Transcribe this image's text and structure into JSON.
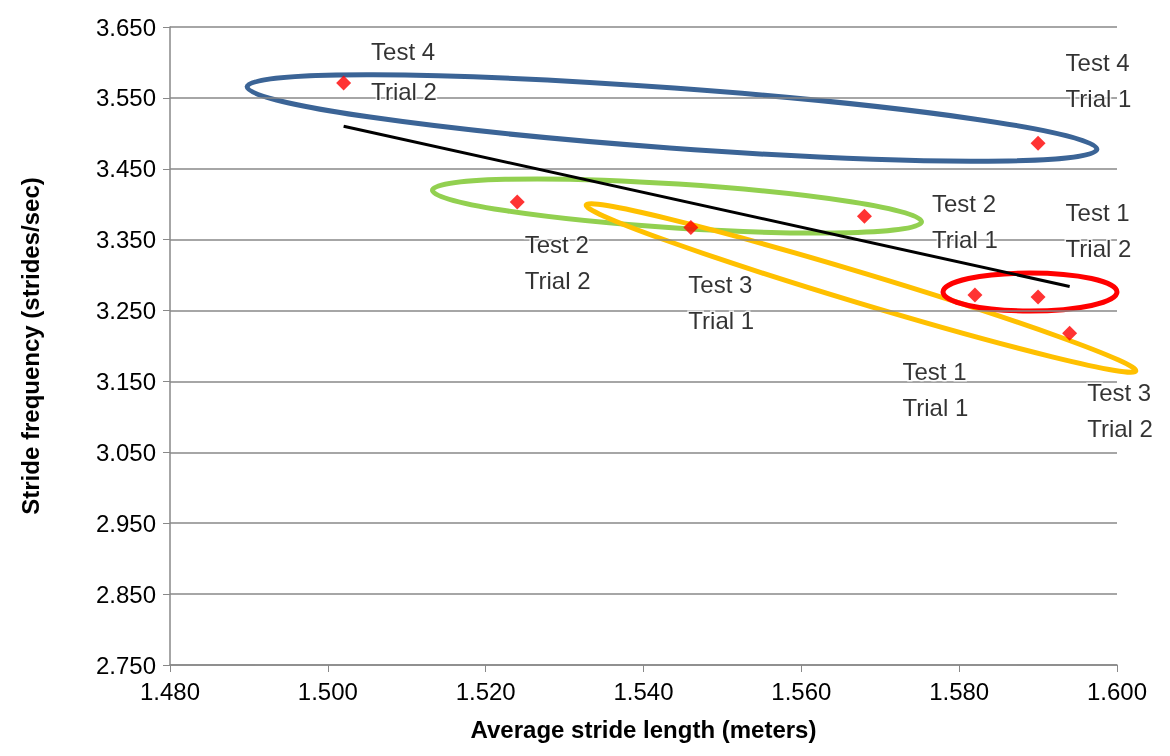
{
  "chart_data": {
    "type": "scatter",
    "xlabel": "Average stride length (meters)",
    "ylabel": "Stride frequency (strides/sec)",
    "xlim": [
      1.48,
      1.6
    ],
    "ylim": [
      2.75,
      3.65
    ],
    "xticks": [
      {
        "value": 1.48,
        "label": "1.480"
      },
      {
        "value": 1.5,
        "label": "1.500"
      },
      {
        "value": 1.52,
        "label": "1.520"
      },
      {
        "value": 1.54,
        "label": "1.540"
      },
      {
        "value": 1.56,
        "label": "1.560"
      },
      {
        "value": 1.58,
        "label": "1.580"
      },
      {
        "value": 1.6,
        "label": "1.600"
      }
    ],
    "yticks": [
      {
        "value": 2.75,
        "label": "2.750"
      },
      {
        "value": 2.85,
        "label": "2.850"
      },
      {
        "value": 2.95,
        "label": "2.950"
      },
      {
        "value": 3.05,
        "label": "3.050"
      },
      {
        "value": 3.15,
        "label": "3.150"
      },
      {
        "value": 3.25,
        "label": "3.250"
      },
      {
        "value": 3.35,
        "label": "3.350"
      },
      {
        "value": 3.45,
        "label": "3.450"
      },
      {
        "value": 3.55,
        "label": "3.550"
      },
      {
        "value": 3.65,
        "label": "3.650"
      }
    ],
    "grid": "y",
    "series": [
      {
        "color": "#ff0000",
        "marker": "diamond",
        "x": [
          1.502,
          1.59,
          1.524,
          1.546,
          1.568,
          1.582,
          1.59,
          1.594
        ],
        "values": [
          3.571,
          3.486,
          3.403,
          3.367,
          3.383,
          3.272,
          3.269,
          3.218
        ]
      },
      {
        "type": "line",
        "color": "#000000",
        "marker": "none",
        "x": [
          1.502,
          1.594
        ],
        "values": [
          3.51,
          3.284
        ]
      }
    ],
    "annotations": [
      {
        "text": "Test 4\nTrial 2",
        "x": 1.502,
        "y": 3.571
      },
      {
        "text": "Test 4\nTrial 1",
        "x": 1.59,
        "y": 3.486
      },
      {
        "text": "Test 2\nTrial 2",
        "x": 1.524,
        "y": 3.403
      },
      {
        "text": "Test 3\nTrial 1",
        "x": 1.546,
        "y": 3.367
      },
      {
        "text": "Test 2\nTrial 1",
        "x": 1.568,
        "y": 3.383
      },
      {
        "text": "Test 1\nTrial 1",
        "x": 1.582,
        "y": 3.272
      },
      {
        "text": "Test 1\nTrial 2",
        "x": 1.59,
        "y": 3.269
      },
      {
        "text": "Test 3\nTrial 2",
        "x": 1.594,
        "y": 3.218
      }
    ]
  }
}
